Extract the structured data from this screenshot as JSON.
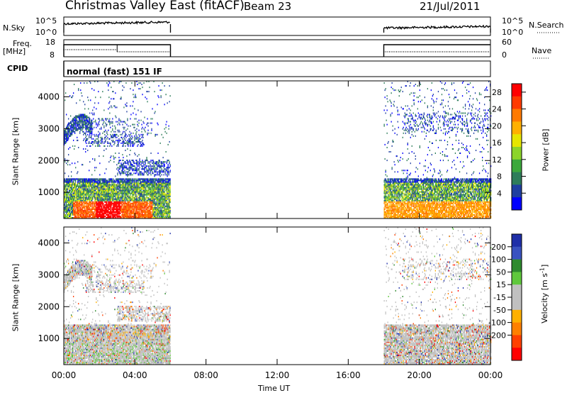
{
  "header": {
    "title": "Christmas Valley East (fitACF)",
    "beam": "Beam 23",
    "date": "21/Jul/2011"
  },
  "sky_panel": {
    "left_label": "N.Sky",
    "right_label": "N.Search",
    "left_ticks": [
      "10^5",
      "10^0"
    ],
    "right_ticks": [
      "10^5",
      "10^0"
    ]
  },
  "freq_panel": {
    "left_label_1": "Freq.",
    "left_label_2": "[MHz]",
    "left_ticks": [
      "18",
      "8"
    ],
    "right_label": "Nave",
    "right_ticks": [
      "60",
      "0"
    ]
  },
  "cpid_panel": {
    "label": "CPID",
    "text": "normal (fast) 151 IF"
  },
  "colors": {
    "power_scale": [
      "#0000ff",
      "#1f3fa0",
      "#2e7d5a",
      "#3ca83c",
      "#8cd42a",
      "#e6e600",
      "#ffb000",
      "#ff7a00",
      "#ff3a00",
      "#ff0000"
    ],
    "velocity_scale": [
      "#1f2fa8",
      "#3a52c0",
      "#2e8a2e",
      "#5fc83c",
      "#c0c0c0",
      "#c0c0c0",
      "#ffb000",
      "#ff8000",
      "#ff4000",
      "#ff0000"
    ]
  },
  "chart_data": [
    {
      "type": "heatmap",
      "ylabel": "Slant Range [km]",
      "xlabel": "Time UT",
      "x_ticks": [
        "00:00",
        "04:00",
        "08:00",
        "12:00",
        "16:00",
        "20:00",
        "00:00"
      ],
      "y_ticks": [
        "1000",
        "2000",
        "3000",
        "4000"
      ],
      "x_range_hours": [
        0,
        24
      ],
      "y_range_km": [
        180,
        4500
      ],
      "data_intervals_hours": [
        [
          0,
          6
        ],
        [
          18,
          24
        ]
      ],
      "colorbar": {
        "label": "Power [dB]",
        "tick_labels": [
          "4",
          "8",
          "12",
          "16",
          "20",
          "24",
          "28"
        ],
        "range": [
          0,
          30
        ]
      }
    },
    {
      "type": "heatmap",
      "ylabel": "Slant Range [km]",
      "xlabel": "Time UT",
      "x_ticks": [
        "00:00",
        "04:00",
        "08:00",
        "12:00",
        "16:00",
        "20:00",
        "00:00"
      ],
      "y_ticks": [
        "1000",
        "2000",
        "3000",
        "4000"
      ],
      "x_range_hours": [
        0,
        24
      ],
      "y_range_km": [
        180,
        4500
      ],
      "data_intervals_hours": [
        [
          0,
          6
        ],
        [
          18,
          24
        ]
      ],
      "colorbar": {
        "label": "Velocity [m s^-1]",
        "tick_labels": [
          "200",
          "100",
          "50",
          "15",
          "-15",
          "-50",
          "-100",
          "-200"
        ],
        "range": [
          -250,
          250
        ]
      }
    }
  ],
  "footer": {
    "xlabel": "Time UT"
  }
}
